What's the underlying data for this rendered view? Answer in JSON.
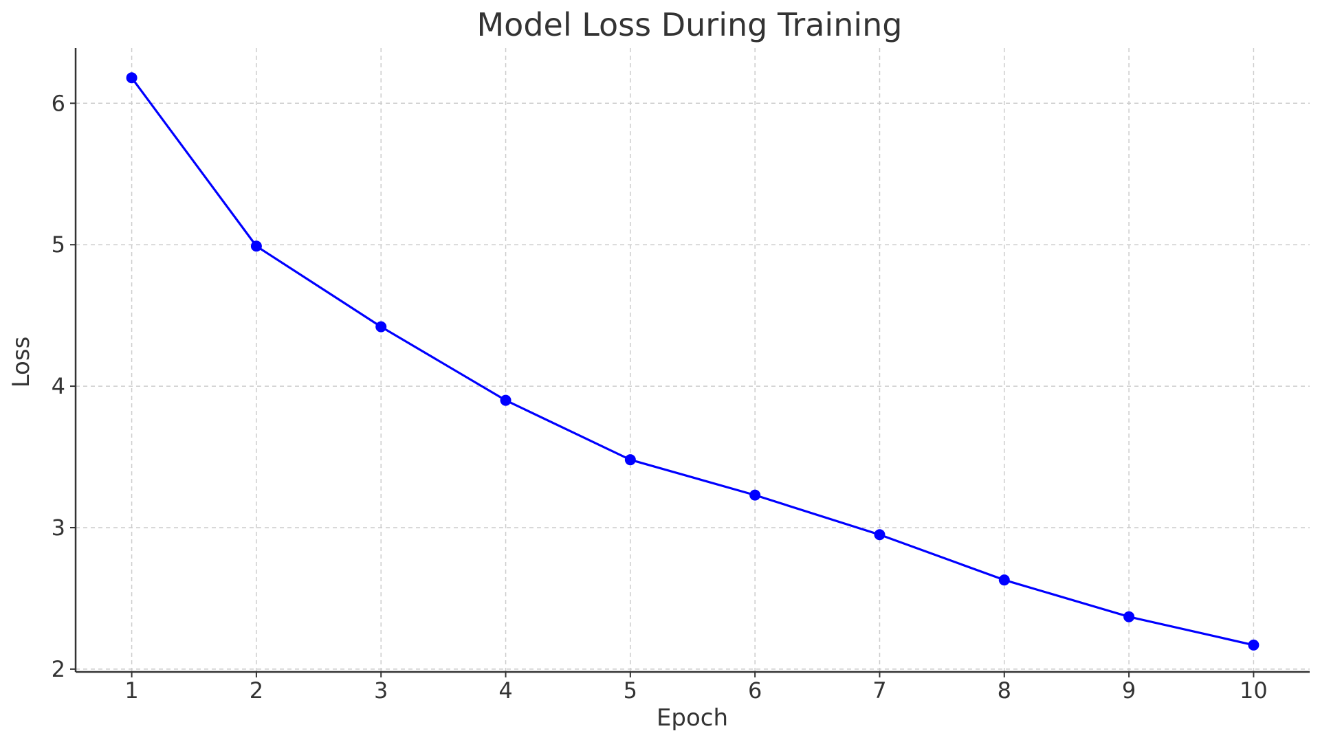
{
  "chart_data": {
    "type": "line",
    "title": "Model Loss During Training",
    "xlabel": "Epoch",
    "ylabel": "Loss",
    "x": [
      1,
      2,
      3,
      4,
      5,
      6,
      7,
      8,
      9,
      10
    ],
    "xticks": [
      "1",
      "2",
      "3",
      "4",
      "5",
      "6",
      "7",
      "8",
      "9",
      "10"
    ],
    "yticks": [
      "2",
      "3",
      "4",
      "5",
      "6"
    ],
    "xlim": [
      0.55,
      10.45
    ],
    "ylim": [
      1.98,
      6.39
    ],
    "grid": true,
    "series": [
      {
        "values": [
          6.18,
          4.99,
          4.42,
          3.9,
          3.48,
          3.23,
          2.95,
          2.63,
          2.37,
          2.17
        ],
        "color": "#0000ff",
        "marker": "circle"
      }
    ]
  }
}
